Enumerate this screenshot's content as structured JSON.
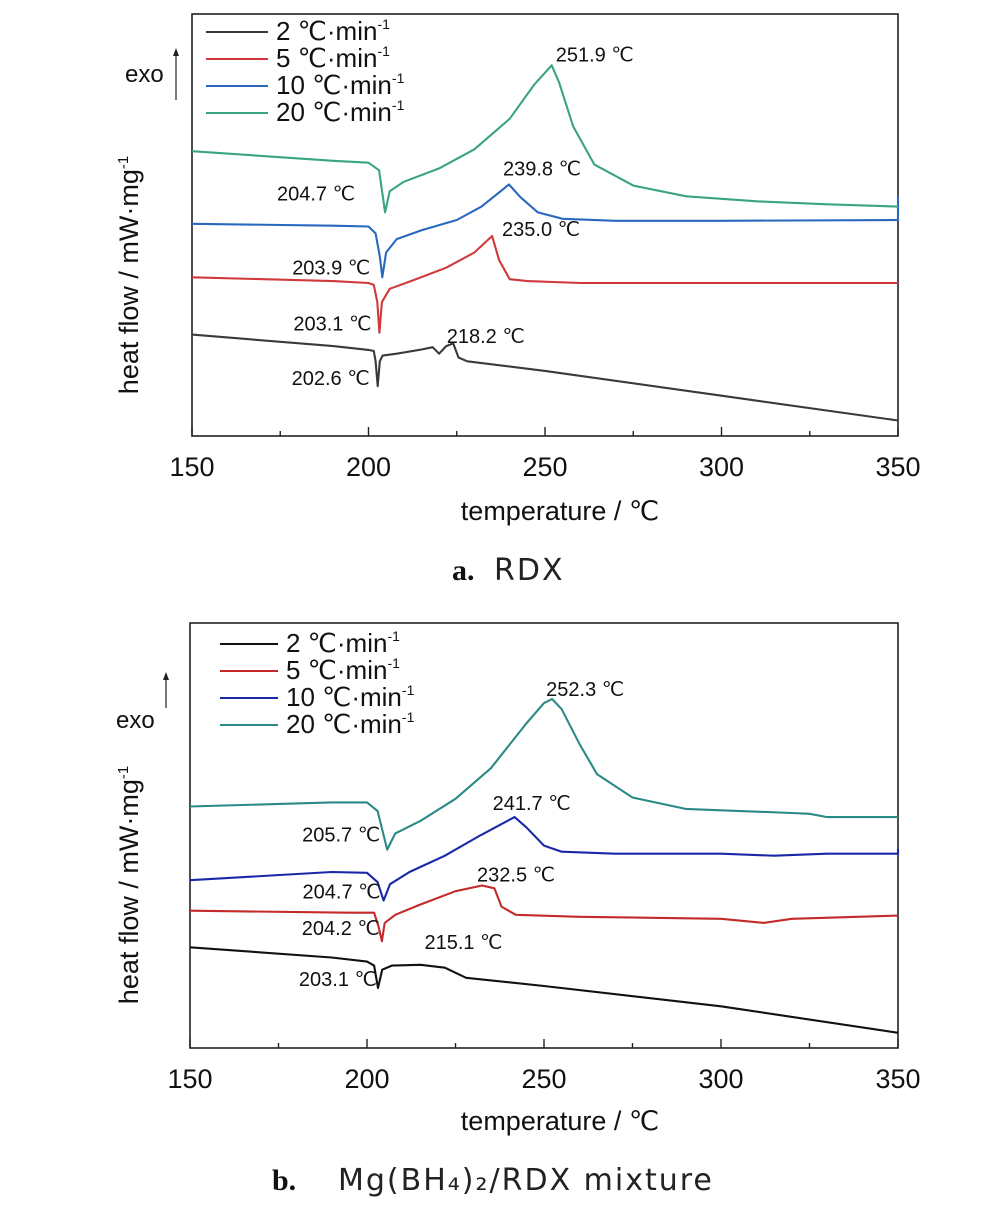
{
  "chart_data": [
    {
      "type": "line",
      "panel": "a",
      "caption_letter": "a.",
      "caption_text": "RDX",
      "xlabel": "temperature / ℃",
      "ylabel": "heat flow / mW·mg",
      "ylabel_sup": "-1",
      "exo_label": "exo",
      "xlim": [
        150,
        350
      ],
      "xticks": [
        150,
        200,
        250,
        300,
        350
      ],
      "ylim": [
        0,
        1
      ],
      "legend": {
        "placement": "top-left"
      },
      "series": [
        {
          "name": "2 ℃·min",
          "name_sup": "-1",
          "color": "#3a3a3a",
          "points": [
            [
              150,
              0.255
            ],
            [
              190,
              0.225
            ],
            [
              200,
              0.215
            ],
            [
              201.5,
              0.212
            ],
            [
              202,
              0.185
            ],
            [
              202.6,
              0.12
            ],
            [
              203.2,
              0.185
            ],
            [
              204,
              0.2
            ],
            [
              208,
              0.205
            ],
            [
              215,
              0.216
            ],
            [
              218.2,
              0.222
            ],
            [
              220,
              0.205
            ],
            [
              222,
              0.225
            ],
            [
              224,
              0.232
            ],
            [
              225.5,
              0.195
            ],
            [
              228,
              0.185
            ],
            [
              250,
              0.16
            ],
            [
              300,
              0.095
            ],
            [
              350,
              0.03
            ]
          ]
        },
        {
          "name": "5 ℃·min",
          "name_sup": "-1",
          "color": "#d0393b",
          "points": [
            [
              150,
              0.405
            ],
            [
              190,
              0.395
            ],
            [
              200,
              0.39
            ],
            [
              201.5,
              0.385
            ],
            [
              202.5,
              0.34
            ],
            [
              203.1,
              0.26
            ],
            [
              203.8,
              0.34
            ],
            [
              206,
              0.375
            ],
            [
              212,
              0.395
            ],
            [
              222,
              0.43
            ],
            [
              230,
              0.47
            ],
            [
              235,
              0.513
            ],
            [
              237,
              0.45
            ],
            [
              240,
              0.4
            ],
            [
              245,
              0.395
            ],
            [
              260,
              0.39
            ],
            [
              300,
              0.39
            ],
            [
              350,
              0.39
            ]
          ]
        },
        {
          "name": "10 ℃·min",
          "name_sup": "-1",
          "color": "#2a68bf",
          "points": [
            [
              150,
              0.545
            ],
            [
              190,
              0.54
            ],
            [
              200,
              0.538
            ],
            [
              202,
              0.52
            ],
            [
              203.2,
              0.46
            ],
            [
              203.9,
              0.405
            ],
            [
              205,
              0.47
            ],
            [
              208,
              0.505
            ],
            [
              215,
              0.528
            ],
            [
              225,
              0.555
            ],
            [
              232,
              0.59
            ],
            [
              239.8,
              0.648
            ],
            [
              243,
              0.615
            ],
            [
              248,
              0.575
            ],
            [
              255,
              0.558
            ],
            [
              270,
              0.553
            ],
            [
              300,
              0.553
            ],
            [
              350,
              0.555
            ],
            [
              350,
              0.618
            ]
          ]
        },
        {
          "name": "20 ℃·min",
          "name_sup": "-1",
          "color": "#3aa57a",
          "points": [
            [
              150,
              0.735
            ],
            [
              190,
              0.71
            ],
            [
              200,
              0.705
            ],
            [
              203,
              0.685
            ],
            [
              204.7,
              0.575
            ],
            [
              206,
              0.63
            ],
            [
              210,
              0.655
            ],
            [
              220,
              0.69
            ],
            [
              230,
              0.74
            ],
            [
              240,
              0.82
            ],
            [
              247,
              0.91
            ],
            [
              251.9,
              0.96
            ],
            [
              254,
              0.915
            ],
            [
              258,
              0.8
            ],
            [
              264,
              0.7
            ],
            [
              275,
              0.645
            ],
            [
              290,
              0.617
            ],
            [
              310,
              0.604
            ],
            [
              330,
              0.596
            ],
            [
              350,
              0.59
            ]
          ]
        }
      ],
      "annotations": [
        {
          "text": "251.9 ℃",
          "x": 251.9,
          "series": "20 ℃·min"
        },
        {
          "text": "204.7 ℃",
          "x": 204.7,
          "series": "20 ℃·min"
        },
        {
          "text": "239.8 ℃",
          "x": 239.8,
          "series": "10 ℃·min"
        },
        {
          "text": "203.9 ℃",
          "x": 203.9,
          "series": "10 ℃·min"
        },
        {
          "text": "235.0 ℃",
          "x": 235.0,
          "series": "5 ℃·min"
        },
        {
          "text": "203.1 ℃",
          "x": 203.1,
          "series": "5 ℃·min"
        },
        {
          "text": "218.2 ℃",
          "x": 218.2,
          "series": "2 ℃·min"
        },
        {
          "text": "202.6 ℃",
          "x": 202.6,
          "series": "2 ℃·min"
        }
      ]
    },
    {
      "type": "line",
      "panel": "b",
      "caption_letter": "b.",
      "caption_text": "Mg(BH₄)₂/RDX mixture",
      "xlabel": "temperature / ℃",
      "ylabel": "heat flow / mW·mg",
      "ylabel_sup": "-1",
      "exo_label": "exo",
      "xlim": [
        150,
        350
      ],
      "xticks": [
        150,
        200,
        250,
        300,
        350
      ],
      "ylim": [
        0,
        1
      ],
      "legend": {
        "placement": "top-left"
      },
      "series": [
        {
          "name": "2 ℃·min",
          "name_sup": "-1",
          "color": "#111111",
          "points": [
            [
              150,
              0.24
            ],
            [
              190,
              0.215
            ],
            [
              200,
              0.205
            ],
            [
              202,
              0.195
            ],
            [
              203.1,
              0.14
            ],
            [
              204.3,
              0.185
            ],
            [
              207,
              0.195
            ],
            [
              215.1,
              0.197
            ],
            [
              222,
              0.19
            ],
            [
              228,
              0.165
            ],
            [
              250,
              0.145
            ],
            [
              300,
              0.095
            ],
            [
              350,
              0.03
            ]
          ]
        },
        {
          "name": "5 ℃·min",
          "name_sup": "-1",
          "color": "#c42a2a",
          "points": [
            [
              150,
              0.33
            ],
            [
              195,
              0.325
            ],
            [
              202,
              0.325
            ],
            [
              203.3,
              0.29
            ],
            [
              204.2,
              0.255
            ],
            [
              205,
              0.3
            ],
            [
              208,
              0.32
            ],
            [
              215,
              0.345
            ],
            [
              225,
              0.378
            ],
            [
              232.5,
              0.392
            ],
            [
              236,
              0.385
            ],
            [
              238,
              0.34
            ],
            [
              242,
              0.32
            ],
            [
              260,
              0.315
            ],
            [
              300,
              0.31
            ],
            [
              312,
              0.3
            ],
            [
              320,
              0.31
            ],
            [
              350,
              0.318
            ]
          ]
        },
        {
          "name": "10 ℃·min",
          "name_sup": "-1",
          "color": "#1a28a8",
          "points": [
            [
              150,
              0.405
            ],
            [
              190,
              0.425
            ],
            [
              200,
              0.423
            ],
            [
              203,
              0.4
            ],
            [
              204.7,
              0.355
            ],
            [
              206.5,
              0.395
            ],
            [
              212,
              0.425
            ],
            [
              222,
              0.465
            ],
            [
              232,
              0.515
            ],
            [
              241.7,
              0.56
            ],
            [
              245,
              0.535
            ],
            [
              250,
              0.49
            ],
            [
              255,
              0.475
            ],
            [
              270,
              0.47
            ],
            [
              300,
              0.47
            ],
            [
              315,
              0.465
            ],
            [
              330,
              0.47
            ],
            [
              350,
              0.47
            ],
            [
              350,
              0.482
            ]
          ]
        },
        {
          "name": "20 ℃·min",
          "name_sup": "-1",
          "color": "#2a8a86",
          "points": [
            [
              150,
              0.586
            ],
            [
              190,
              0.596
            ],
            [
              200,
              0.596
            ],
            [
              203,
              0.575
            ],
            [
              205.7,
              0.48
            ],
            [
              208,
              0.52
            ],
            [
              215,
              0.55
            ],
            [
              225,
              0.605
            ],
            [
              235,
              0.68
            ],
            [
              245,
              0.79
            ],
            [
              250,
              0.84
            ],
            [
              252.3,
              0.85
            ],
            [
              255,
              0.825
            ],
            [
              260,
              0.74
            ],
            [
              265,
              0.665
            ],
            [
              275,
              0.608
            ],
            [
              290,
              0.58
            ],
            [
              320,
              0.57
            ],
            [
              325,
              0.568
            ],
            [
              330,
              0.56
            ],
            [
              350,
              0.56
            ]
          ]
        }
      ],
      "annotations": [
        {
          "text": "252.3 ℃",
          "x": 252.3,
          "series": "20 ℃·min"
        },
        {
          "text": "205.7 ℃",
          "x": 205.7,
          "series": "20 ℃·min"
        },
        {
          "text": "241.7 ℃",
          "x": 241.7,
          "series": "10 ℃·min"
        },
        {
          "text": "204.7 ℃",
          "x": 204.7,
          "series": "10 ℃·min"
        },
        {
          "text": "232.5 ℃",
          "x": 232.5,
          "series": "5 ℃·min"
        },
        {
          "text": "204.2 ℃",
          "x": 204.2,
          "series": "5 ℃·min"
        },
        {
          "text": "215.1 ℃",
          "x": 215.1,
          "series": "2 ℃·min"
        },
        {
          "text": "203.1 ℃",
          "x": 203.1,
          "series": "2 ℃·min"
        }
      ]
    }
  ]
}
